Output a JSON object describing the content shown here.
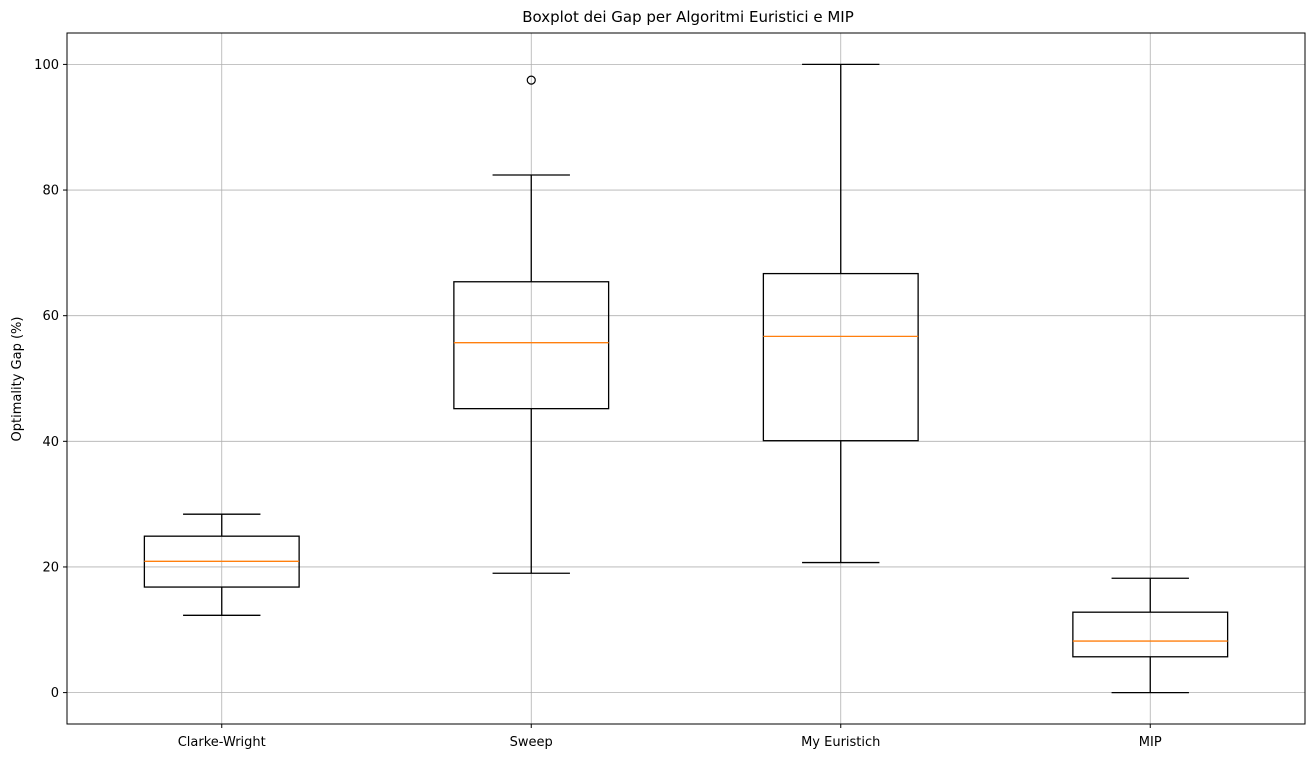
{
  "chart_data": {
    "type": "boxplot",
    "title": "Boxplot dei Gap per Algoritmi Euristici e MIP",
    "xlabel": "",
    "ylabel": "Optimality Gap (%)",
    "ylim": [
      -5,
      105
    ],
    "yticks": [
      0,
      20,
      40,
      60,
      80,
      100
    ],
    "grid": true,
    "categories": [
      "Clarke-Wright",
      "Sweep",
      "My Euristich",
      "MIP"
    ],
    "boxes": [
      {
        "name": "Clarke-Wright",
        "whisker_low": 12.3,
        "q1": 16.8,
        "median": 20.9,
        "q3": 24.9,
        "whisker_high": 28.4,
        "outliers": []
      },
      {
        "name": "Sweep",
        "whisker_low": 19.0,
        "q1": 45.2,
        "median": 55.7,
        "q3": 65.4,
        "whisker_high": 82.4,
        "outliers": [
          97.5
        ]
      },
      {
        "name": "My Euristich",
        "whisker_low": 20.7,
        "q1": 40.1,
        "median": 56.7,
        "q3": 66.7,
        "whisker_high": 100.0,
        "outliers": []
      },
      {
        "name": "MIP",
        "whisker_low": 0.0,
        "q1": 5.7,
        "median": 8.2,
        "q3": 12.8,
        "whisker_high": 18.2,
        "outliers": []
      }
    ],
    "colors": {
      "box": "#000000",
      "median": "#ff7f0e",
      "grid": "#b0b0b0"
    }
  }
}
